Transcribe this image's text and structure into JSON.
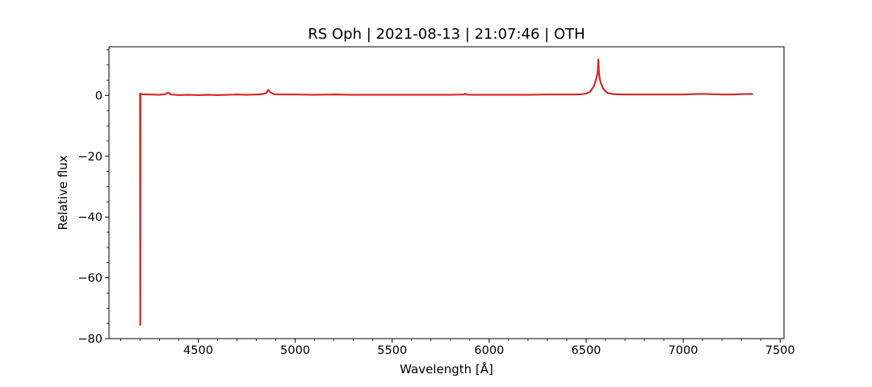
{
  "chart_data": {
    "type": "line",
    "title": "RS Oph | 2021-08-13 | 21:07:46 | OTH",
    "xlabel": "Wavelength [Å]",
    "ylabel": "Relative flux",
    "xlim": [
      4040,
      7520
    ],
    "ylim": [
      -80,
      16
    ],
    "x_ticks": [
      4500,
      5000,
      5500,
      6000,
      6500,
      7000,
      7500
    ],
    "x_tick_labels": [
      "4500",
      "5000",
      "5500",
      "6000",
      "6500",
      "7000",
      "7500"
    ],
    "x_minor_step": 100,
    "y_ticks": [
      0,
      -20,
      -40,
      -60,
      -80
    ],
    "y_tick_labels": [
      "0",
      "−20",
      "−40",
      "−60",
      "−80"
    ],
    "y_minor_step": 5,
    "grid": false,
    "series": [
      {
        "color": "#d62728",
        "x": [
          4198,
          4200,
          4201,
          4202,
          4204,
          4210,
          4250,
          4300,
          4330,
          4345,
          4360,
          4400,
          4450,
          4500,
          4550,
          4600,
          4650,
          4700,
          4750,
          4800,
          4830,
          4850,
          4861,
          4872,
          4890,
          4920,
          5000,
          5100,
          5200,
          5300,
          5400,
          5500,
          5600,
          5700,
          5800,
          5870,
          5876,
          5882,
          5900,
          6000,
          6100,
          6200,
          6300,
          6400,
          6450,
          6480,
          6500,
          6520,
          6540,
          6550,
          6556,
          6560,
          6563,
          6566,
          6570,
          6576,
          6590,
          6610,
          6640,
          6700,
          6800,
          6900,
          7000,
          7050,
          7100,
          7150,
          7200,
          7250,
          7300,
          7350,
          7360
        ],
        "y": [
          0.8,
          0.5,
          -75.5,
          0.3,
          0.5,
          0.4,
          0.3,
          0.2,
          0.4,
          0.9,
          0.3,
          0.1,
          0.2,
          0.1,
          0.2,
          0.1,
          0.2,
          0.3,
          0.2,
          0.3,
          0.4,
          0.8,
          1.8,
          1.0,
          0.4,
          0.3,
          0.3,
          0.2,
          0.3,
          0.2,
          0.2,
          0.2,
          0.2,
          0.2,
          0.2,
          0.3,
          0.6,
          0.3,
          0.2,
          0.2,
          0.2,
          0.2,
          0.3,
          0.3,
          0.3,
          0.4,
          0.6,
          1.2,
          3.0,
          5.0,
          6.5,
          8.0,
          11.8,
          7.5,
          5.5,
          4.0,
          2.0,
          0.8,
          0.4,
          0.3,
          0.3,
          0.3,
          0.3,
          0.4,
          0.5,
          0.4,
          0.3,
          0.3,
          0.4,
          0.5,
          0.4
        ]
      }
    ]
  }
}
